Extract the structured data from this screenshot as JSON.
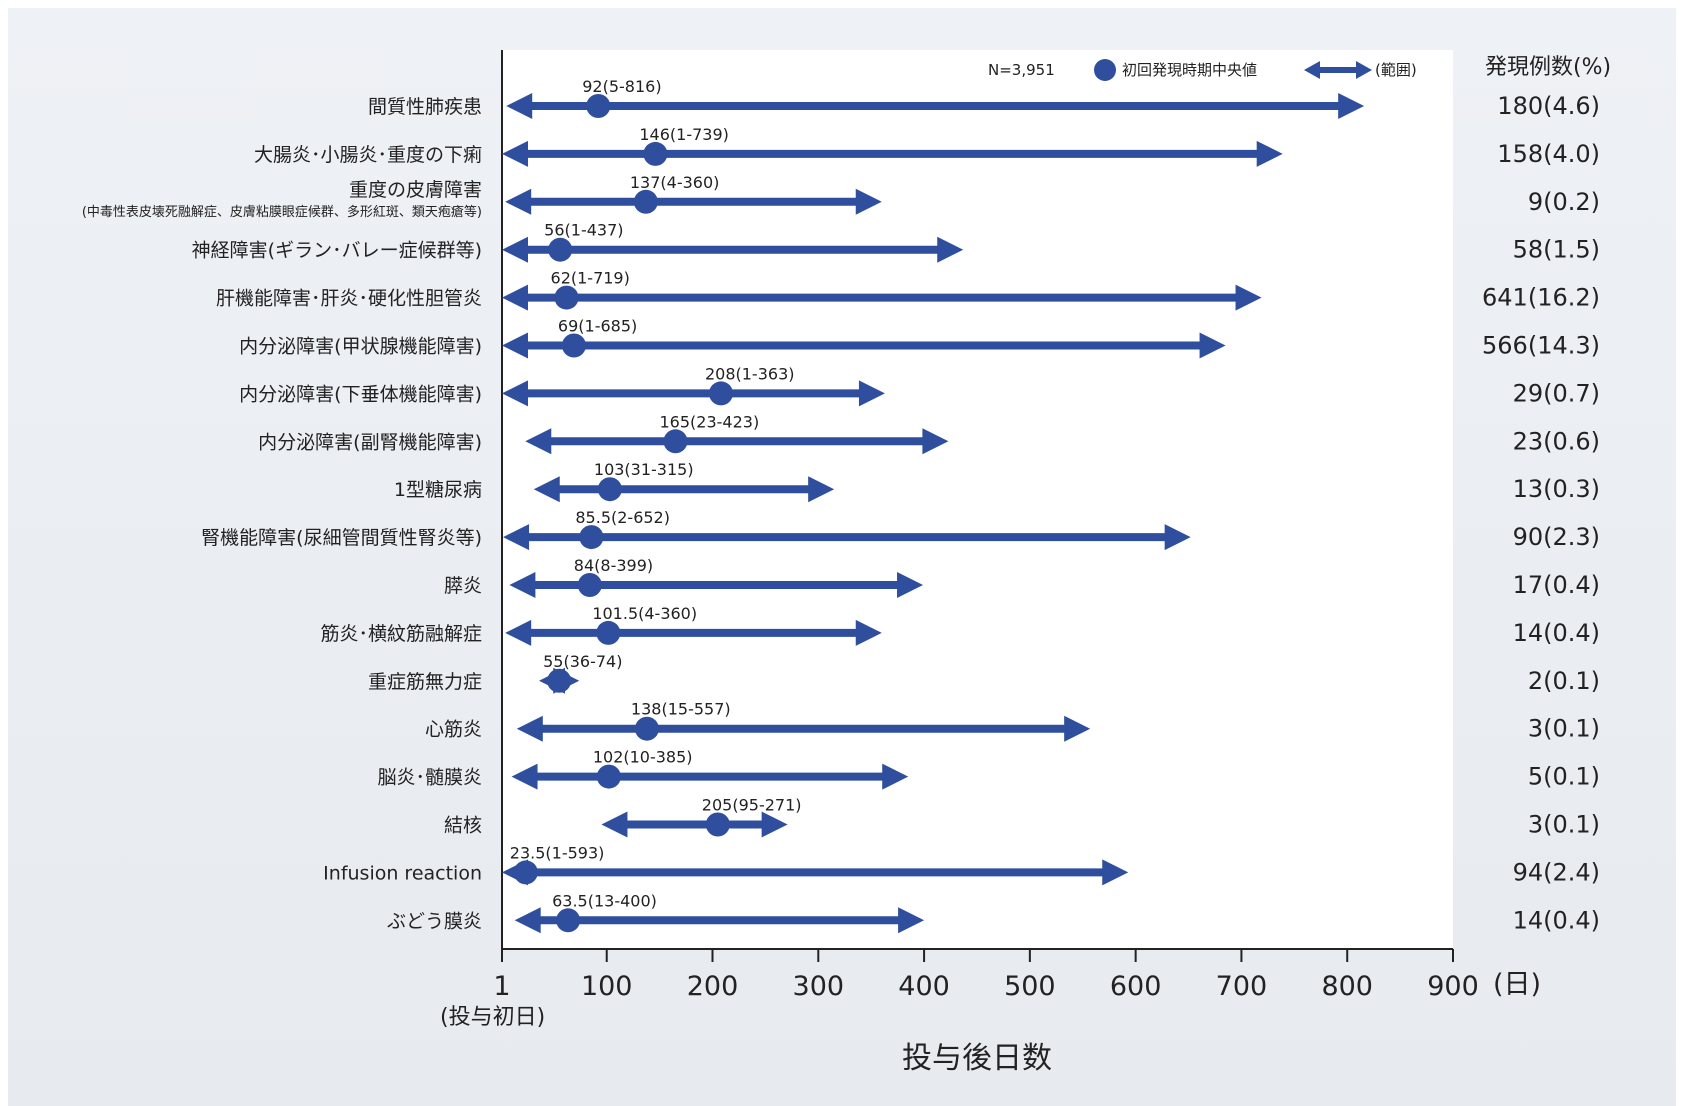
{
  "header": {
    "right_column_title": "発現例数(%)",
    "n_label": "N=3,951",
    "legend_median": "初回発現時期中央値",
    "legend_range": "(範囲)"
  },
  "axis": {
    "x_title": "投与後日数",
    "x_unit": "(日)",
    "x_first_sub": "(投与初日)"
  },
  "colors": {
    "bar": "#2f4f9e",
    "plot_bg": "#ffffff",
    "page_bg": "#e9edf2"
  },
  "chart_data": {
    "type": "range-dot",
    "title": "",
    "xlabel": "投与後日数",
    "xlim": [
      1,
      900
    ],
    "xticks": [
      {
        "value": 1,
        "label": "1"
      },
      {
        "value": 100,
        "label": "100"
      },
      {
        "value": 200,
        "label": "200"
      },
      {
        "value": 300,
        "label": "300"
      },
      {
        "value": 400,
        "label": "400"
      },
      {
        "value": 500,
        "label": "500"
      },
      {
        "value": 600,
        "label": "600"
      },
      {
        "value": 700,
        "label": "700"
      },
      {
        "value": 800,
        "label": "800"
      },
      {
        "value": 900,
        "label": "900"
      }
    ],
    "rows": [
      {
        "category": "間質性肺疾患",
        "median": 92,
        "min": 5,
        "max": 816,
        "label": "92(5-816)",
        "count": "180(4.6)"
      },
      {
        "category": "大腸炎･小腸炎･重度の下痢",
        "median": 146,
        "min": 1,
        "max": 739,
        "label": "146(1-739)",
        "count": "158(4.0)"
      },
      {
        "category": "重度の皮膚障害",
        "subcategory": "(中毒性表皮壊死融解症、皮膚粘膜眼症候群、多形紅斑、類天疱瘡等)",
        "median": 137,
        "min": 4,
        "max": 360,
        "label": "137(4-360)",
        "count": "9(0.2)"
      },
      {
        "category": "神経障害(ギラン･バレー症候群等)",
        "median": 56,
        "min": 1,
        "max": 437,
        "label": "56(1-437)",
        "count": "58(1.5)"
      },
      {
        "category": "肝機能障害･肝炎･硬化性胆管炎",
        "median": 62,
        "min": 1,
        "max": 719,
        "label": "62(1-719)",
        "count": "641(16.2)"
      },
      {
        "category": "内分泌障害(甲状腺機能障害)",
        "median": 69,
        "min": 1,
        "max": 685,
        "label": "69(1-685)",
        "count": "566(14.3)"
      },
      {
        "category": "内分泌障害(下垂体機能障害)",
        "median": 208,
        "min": 1,
        "max": 363,
        "label": "208(1-363)",
        "count": "29(0.7)"
      },
      {
        "category": "内分泌障害(副腎機能障害)",
        "median": 165,
        "min": 23,
        "max": 423,
        "label": "165(23-423)",
        "count": "23(0.6)"
      },
      {
        "category": "1型糖尿病",
        "median": 103,
        "min": 31,
        "max": 315,
        "label": "103(31-315)",
        "count": "13(0.3)"
      },
      {
        "category": "腎機能障害(尿細管間質性腎炎等)",
        "median": 85.5,
        "min": 2,
        "max": 652,
        "label": "85.5(2-652)",
        "count": "90(2.3)"
      },
      {
        "category": "膵炎",
        "median": 84,
        "min": 8,
        "max": 399,
        "label": "84(8-399)",
        "count": "17(0.4)"
      },
      {
        "category": "筋炎･横紋筋融解症",
        "median": 101.5,
        "min": 4,
        "max": 360,
        "label": "101.5(4-360)",
        "count": "14(0.4)"
      },
      {
        "category": "重症筋無力症",
        "median": 55,
        "min": 36,
        "max": 74,
        "label": "55(36-74)",
        "count": "2(0.1)"
      },
      {
        "category": "心筋炎",
        "median": 138,
        "min": 15,
        "max": 557,
        "label": "138(15-557)",
        "count": "3(0.1)"
      },
      {
        "category": "脳炎･髄膜炎",
        "median": 102,
        "min": 10,
        "max": 385,
        "label": "102(10-385)",
        "count": "5(0.1)"
      },
      {
        "category": "結核",
        "median": 205,
        "min": 95,
        "max": 271,
        "label": "205(95-271)",
        "count": "3(0.1)"
      },
      {
        "category": "Infusion reaction",
        "median": 23.5,
        "min": 1,
        "max": 593,
        "label": "23.5(1-593)",
        "count": "94(2.4)"
      },
      {
        "category": "ぶどう膜炎",
        "median": 63.5,
        "min": 13,
        "max": 400,
        "label": "63.5(13-400)",
        "count": "14(0.4)"
      }
    ]
  }
}
